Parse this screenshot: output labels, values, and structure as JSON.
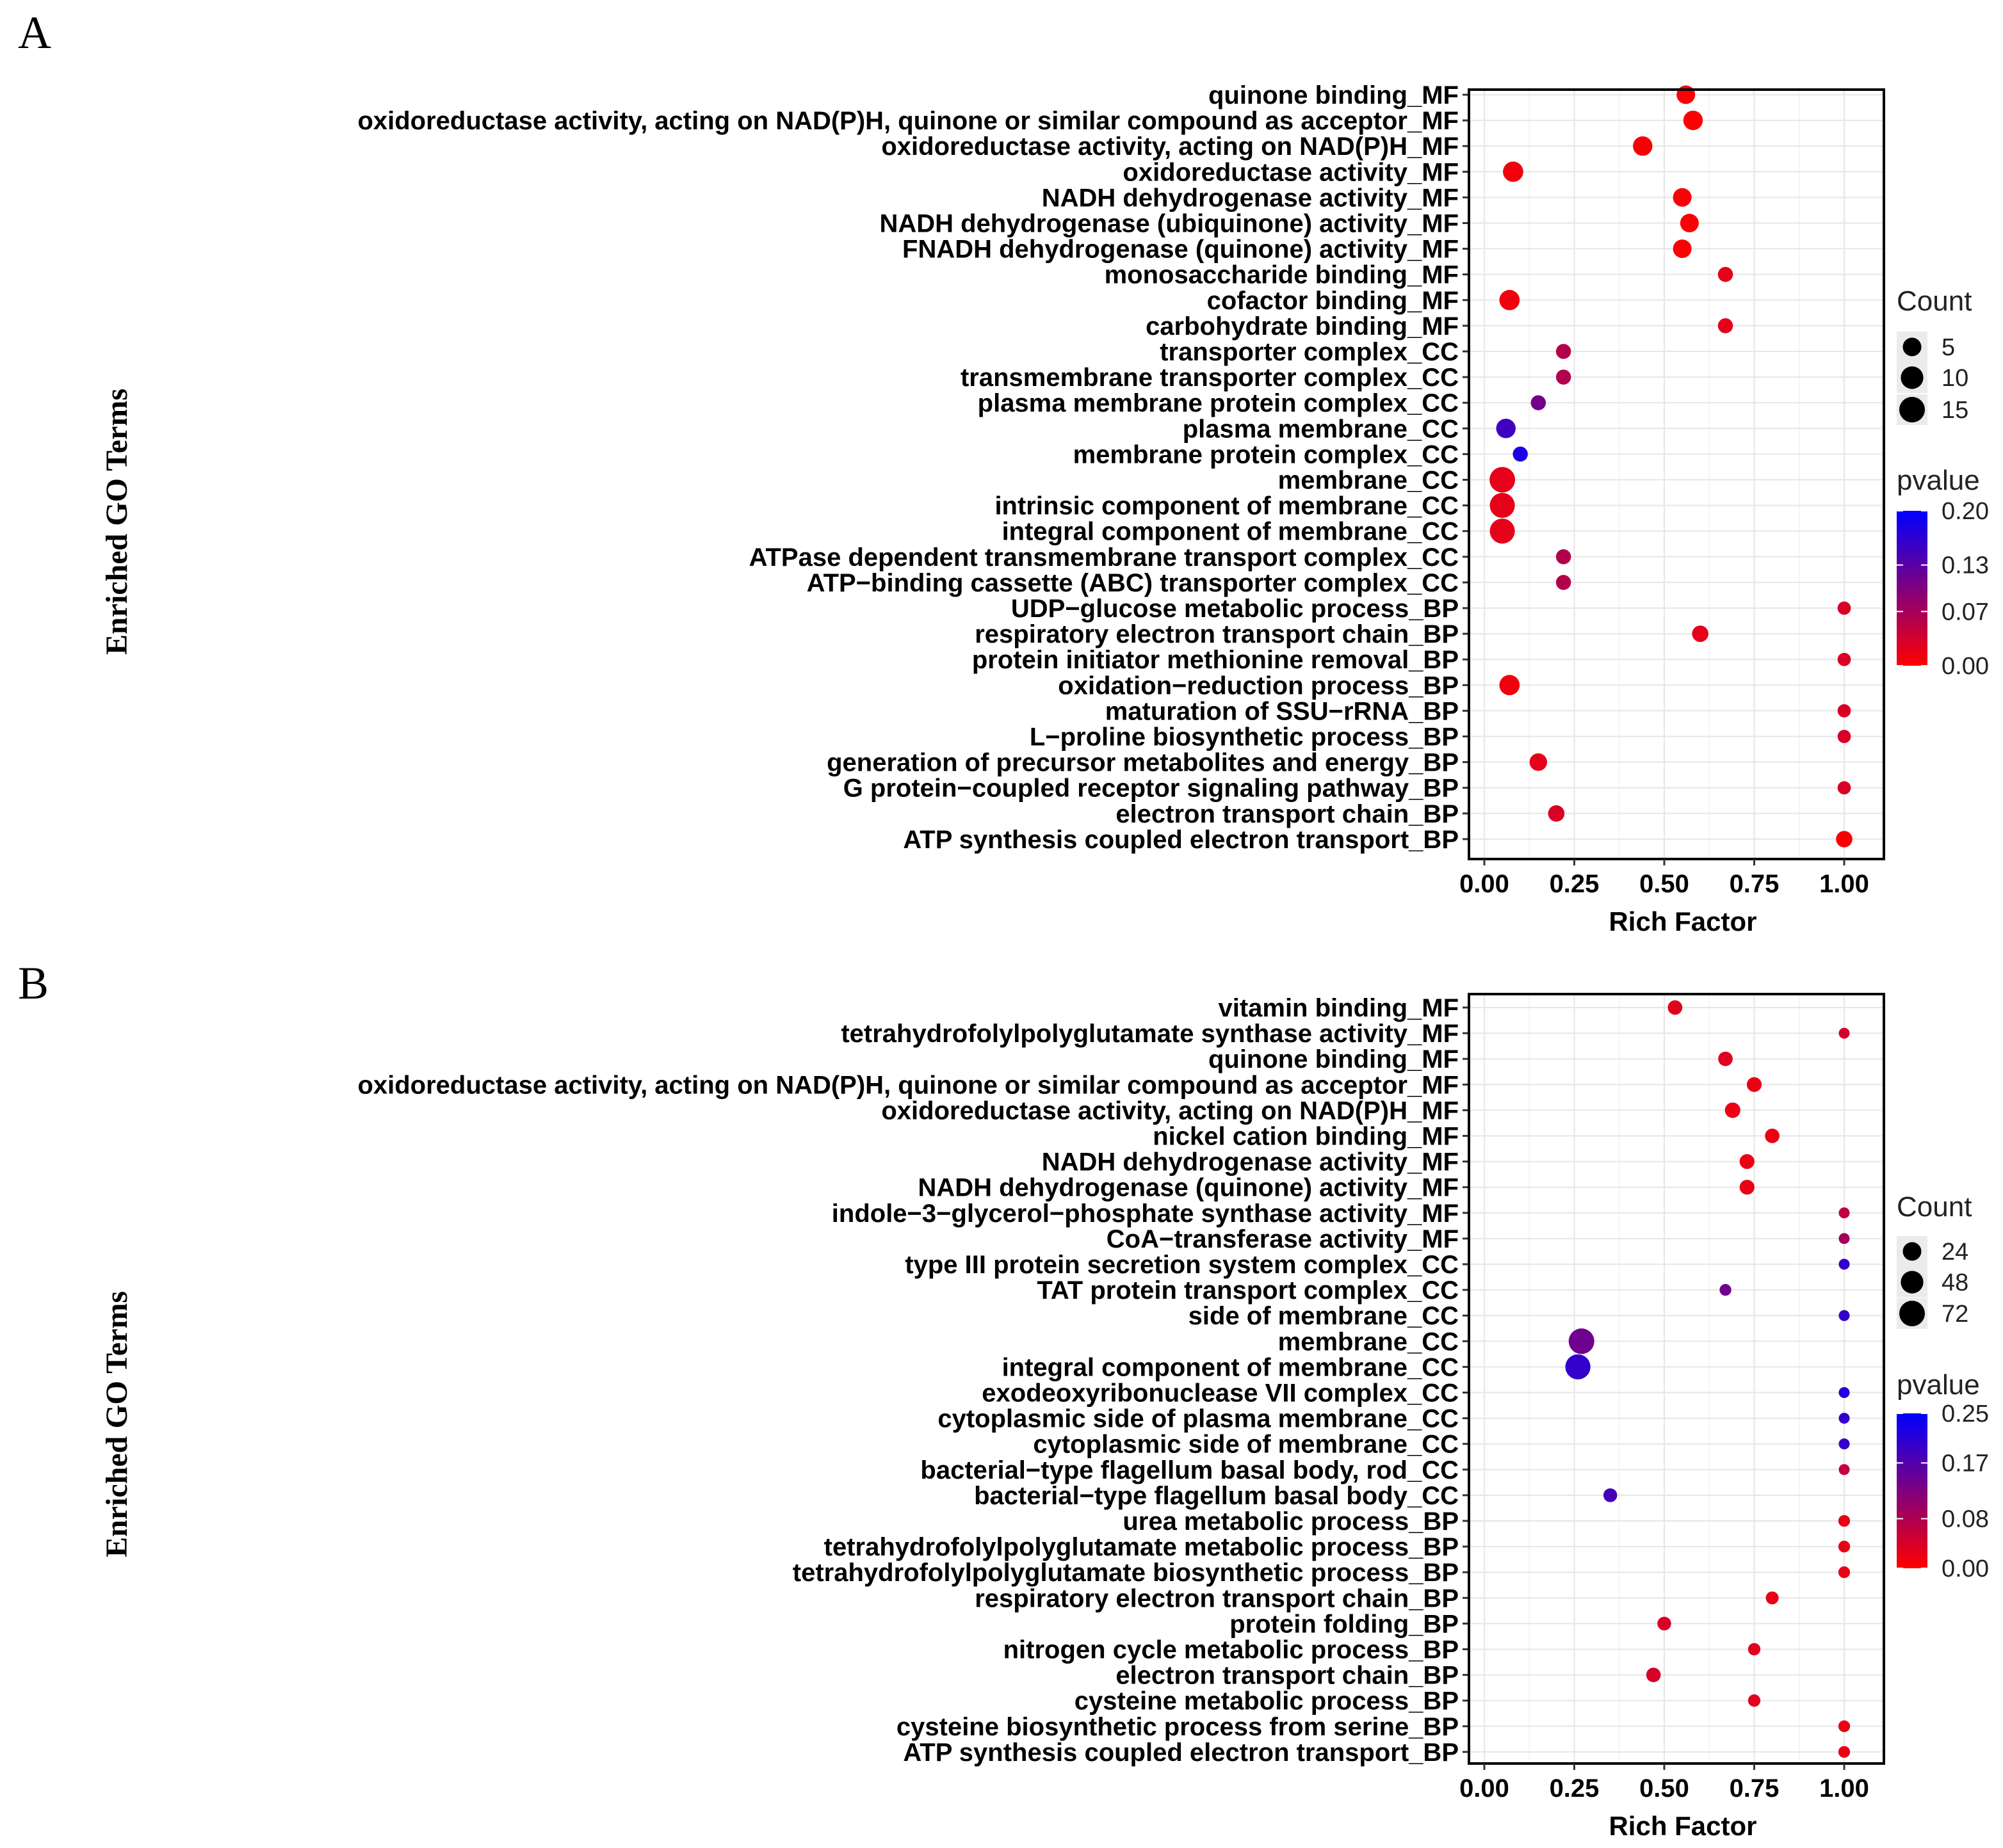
{
  "chart_data": [
    {
      "panel_label": "A",
      "type": "scatter",
      "xlabel": "Rich Factor",
      "ylabel": "Enriched GO Terms",
      "xlim": [
        0,
        1
      ],
      "xticks": [
        "0.00",
        "0.25",
        "0.50",
        "0.75",
        "1.00"
      ],
      "grid": true,
      "size_legend": {
        "title": "Count",
        "values": [
          5,
          10,
          15
        ],
        "labels": [
          "5",
          "10",
          "15"
        ]
      },
      "color_legend": {
        "title": "pvalue",
        "min": 0,
        "max": 0.2,
        "labels": [
          "0.20",
          "0.13",
          "0.07",
          "0.00"
        ],
        "colors": [
          "#ff0000",
          "#0000ff"
        ]
      },
      "points": [
        {
          "term": "quinone binding_MF",
          "rich": 0.56,
          "count": 5,
          "pvalue": 0.002
        },
        {
          "term": "oxidoreductase activity, acting on NAD(P)H, quinone or similar compound as acceptor_MF",
          "rich": 0.58,
          "count": 6,
          "pvalue": 0.002
        },
        {
          "term": "oxidoreductase activity, acting on NAD(P)H_MF",
          "rich": 0.44,
          "count": 6,
          "pvalue": 0.005
        },
        {
          "term": "oxidoreductase activity_MF",
          "rich": 0.08,
          "count": 7,
          "pvalue": 0.01
        },
        {
          "term": "NADH dehydrogenase activity_MF",
          "rich": 0.55,
          "count": 5,
          "pvalue": 0.003
        },
        {
          "term": "NADH dehydrogenase (ubiquinone) activity_MF",
          "rich": 0.57,
          "count": 5,
          "pvalue": 0.003
        },
        {
          "term": "FNADH dehydrogenase (quinone) activity_MF",
          "rich": 0.55,
          "count": 5,
          "pvalue": 0.003
        },
        {
          "term": "monosaccharide binding_MF",
          "rich": 0.67,
          "count": 2,
          "pvalue": 0.02
        },
        {
          "term": "cofactor binding_MF",
          "rich": 0.07,
          "count": 7,
          "pvalue": 0.01
        },
        {
          "term": "carbohydrate binding_MF",
          "rich": 0.67,
          "count": 2,
          "pvalue": 0.02
        },
        {
          "term": "transporter complex_CC",
          "rich": 0.22,
          "count": 2,
          "pvalue": 0.06
        },
        {
          "term": "transmembrane transporter complex_CC",
          "rich": 0.22,
          "count": 2,
          "pvalue": 0.06
        },
        {
          "term": "plasma membrane protein complex_CC",
          "rich": 0.15,
          "count": 2,
          "pvalue": 0.11
        },
        {
          "term": "plasma membrane_CC",
          "rich": 0.06,
          "count": 6,
          "pvalue": 0.15
        },
        {
          "term": "membrane protein complex_CC",
          "rich": 0.1,
          "count": 2,
          "pvalue": 0.18
        },
        {
          "term": "membrane_CC",
          "rich": 0.05,
          "count": 15,
          "pvalue": 0.02
        },
        {
          "term": "intrinsic component of membrane_CC",
          "rich": 0.05,
          "count": 14,
          "pvalue": 0.02
        },
        {
          "term": "integral component of membrane_CC",
          "rich": 0.05,
          "count": 14,
          "pvalue": 0.02
        },
        {
          "term": "ATPase dependent transmembrane transport complex_CC",
          "rich": 0.22,
          "count": 2,
          "pvalue": 0.06
        },
        {
          "term": "ATP−binding cassette (ABC) transporter complex_CC",
          "rich": 0.22,
          "count": 2,
          "pvalue": 0.06
        },
        {
          "term": "UDP−glucose metabolic process_BP",
          "rich": 1.0,
          "count": 1,
          "pvalue": 0.03
        },
        {
          "term": "respiratory electron transport chain_BP",
          "rich": 0.6,
          "count": 3,
          "pvalue": 0.02
        },
        {
          "term": "protein initiator methionine removal_BP",
          "rich": 1.0,
          "count": 1,
          "pvalue": 0.03
        },
        {
          "term": "oxidation−reduction process_BP",
          "rich": 0.07,
          "count": 7,
          "pvalue": 0.01
        },
        {
          "term": "maturation of SSU−rRNA_BP",
          "rich": 1.0,
          "count": 1,
          "pvalue": 0.03
        },
        {
          "term": "L−proline biosynthetic process_BP",
          "rich": 1.0,
          "count": 1,
          "pvalue": 0.03
        },
        {
          "term": "generation of precursor metabolites and energy_BP",
          "rich": 0.15,
          "count": 4,
          "pvalue": 0.02
        },
        {
          "term": "G protein−coupled receptor signaling pathway_BP",
          "rich": 1.0,
          "count": 1,
          "pvalue": 0.03
        },
        {
          "term": "electron transport chain_BP",
          "rich": 0.2,
          "count": 3,
          "pvalue": 0.03
        },
        {
          "term": "ATP synthesis coupled electron transport_BP",
          "rich": 1.0,
          "count": 3,
          "pvalue": 0.005
        }
      ]
    },
    {
      "panel_label": "B",
      "type": "scatter",
      "xlabel": "Rich Factor",
      "ylabel": "Enriched GO Terms",
      "xlim": [
        0,
        1
      ],
      "xticks": [
        "0.00",
        "0.25",
        "0.50",
        "0.75",
        "1.00"
      ],
      "grid": true,
      "size_legend": {
        "title": "Count",
        "values": [
          24,
          48,
          72
        ],
        "labels": [
          "24",
          "48",
          "72"
        ]
      },
      "color_legend": {
        "title": "pvalue",
        "min": 0,
        "max": 0.25,
        "labels": [
          "0.25",
          "0.17",
          "0.08",
          "0.00"
        ],
        "colors": [
          "#ff0000",
          "#0000ff"
        ]
      },
      "points": [
        {
          "term": "vitamin binding_MF",
          "rich": 0.53,
          "count": 8,
          "pvalue": 0.03
        },
        {
          "term": "tetrahydrofolylpolyglutamate synthase activity_MF",
          "rich": 1.0,
          "count": 1,
          "pvalue": 0.04
        },
        {
          "term": "quinone binding_MF",
          "rich": 0.67,
          "count": 8,
          "pvalue": 0.03
        },
        {
          "term": "oxidoreductase activity, acting on NAD(P)H, quinone or similar compound as acceptor_MF",
          "rich": 0.75,
          "count": 9,
          "pvalue": 0.02
        },
        {
          "term": "oxidoreductase activity, acting on NAD(P)H_MF",
          "rich": 0.69,
          "count": 11,
          "pvalue": 0.02
        },
        {
          "term": "nickel cation binding_MF",
          "rich": 0.8,
          "count": 8,
          "pvalue": 0.02
        },
        {
          "term": "NADH dehydrogenase activity_MF",
          "rich": 0.73,
          "count": 9,
          "pvalue": 0.02
        },
        {
          "term": "NADH dehydrogenase (quinone) activity_MF",
          "rich": 0.73,
          "count": 9,
          "pvalue": 0.02
        },
        {
          "term": "indole−3−glycerol−phosphate synthase activity_MF",
          "rich": 1.0,
          "count": 1,
          "pvalue": 0.06
        },
        {
          "term": "CoA−transferase activity_MF",
          "rich": 1.0,
          "count": 1,
          "pvalue": 0.09
        },
        {
          "term": "type III protein secretion system complex_CC",
          "rich": 1.0,
          "count": 1,
          "pvalue": 0.2
        },
        {
          "term": "TAT protein transport complex_CC",
          "rich": 0.67,
          "count": 2,
          "pvalue": 0.14
        },
        {
          "term": "side of membrane_CC",
          "rich": 1.0,
          "count": 1,
          "pvalue": 0.2
        },
        {
          "term": "membrane_CC",
          "rich": 0.27,
          "count": 72,
          "pvalue": 0.14
        },
        {
          "term": "integral component of membrane_CC",
          "rich": 0.26,
          "count": 68,
          "pvalue": 0.2
        },
        {
          "term": "exodeoxyribonuclease VII complex_CC",
          "rich": 1.0,
          "count": 1,
          "pvalue": 0.22
        },
        {
          "term": "cytoplasmic side of plasma membrane_CC",
          "rich": 1.0,
          "count": 1,
          "pvalue": 0.2
        },
        {
          "term": "cytoplasmic side of membrane_CC",
          "rich": 1.0,
          "count": 1,
          "pvalue": 0.2
        },
        {
          "term": "bacterial−type flagellum basal body, rod_CC",
          "rich": 1.0,
          "count": 1,
          "pvalue": 0.06
        },
        {
          "term": "bacterial−type flagellum basal body_CC",
          "rich": 0.35,
          "count": 6,
          "pvalue": 0.18
        },
        {
          "term": "urea metabolic process_BP",
          "rich": 1.0,
          "count": 2,
          "pvalue": 0.02
        },
        {
          "term": "tetrahydrofolylpolyglutamate metabolic process_BP",
          "rich": 1.0,
          "count": 2,
          "pvalue": 0.02
        },
        {
          "term": "tetrahydrofolylpolyglutamate biosynthetic process_BP",
          "rich": 1.0,
          "count": 2,
          "pvalue": 0.02
        },
        {
          "term": "respiratory electron transport chain_BP",
          "rich": 0.8,
          "count": 4,
          "pvalue": 0.02
        },
        {
          "term": "protein folding_BP",
          "rich": 0.5,
          "count": 6,
          "pvalue": 0.04
        },
        {
          "term": "nitrogen cycle metabolic process_BP",
          "rich": 0.75,
          "count": 3,
          "pvalue": 0.03
        },
        {
          "term": "electron transport chain_BP",
          "rich": 0.47,
          "count": 8,
          "pvalue": 0.04
        },
        {
          "term": "cysteine metabolic process_BP",
          "rich": 0.75,
          "count": 3,
          "pvalue": 0.03
        },
        {
          "term": "cysteine biosynthetic process from serine_BP",
          "rich": 1.0,
          "count": 2,
          "pvalue": 0.02
        },
        {
          "term": "ATP synthesis coupled electron transport_BP",
          "rich": 1.0,
          "count": 2,
          "pvalue": 0.02
        }
      ]
    }
  ]
}
